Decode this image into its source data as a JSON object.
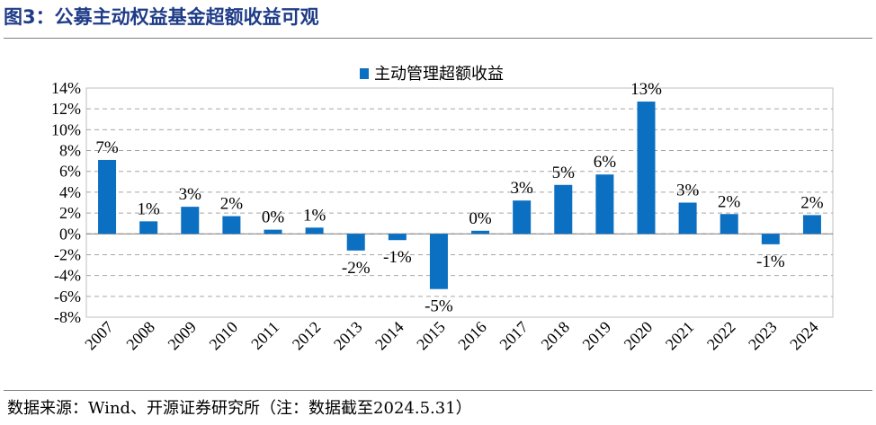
{
  "figure": {
    "title": "图3：公募主动权益基金超额收益可观",
    "source": "数据来源：Wind、开源证券研究所（注：数据截至2024.5.31）"
  },
  "chart_data": {
    "type": "bar",
    "categories": [
      "2007",
      "2008",
      "2009",
      "2010",
      "2011",
      "2012",
      "2013",
      "2014",
      "2015",
      "2016",
      "2017",
      "2018",
      "2019",
      "2020",
      "2021",
      "2022",
      "2023",
      "2024"
    ],
    "series": [
      {
        "name": "主动管理超额收益",
        "values": [
          7.1,
          1.2,
          2.6,
          1.7,
          0.4,
          0.6,
          -1.6,
          -0.6,
          -5.3,
          0.3,
          3.2,
          4.7,
          5.7,
          12.7,
          3.0,
          1.9,
          -1.0,
          1.8
        ],
        "data_labels": [
          "7%",
          "1%",
          "3%",
          "2%",
          "0%",
          "1%",
          "-2%",
          "-1%",
          "-5%",
          "0%",
          "3%",
          "5%",
          "6%",
          "13%",
          "3%",
          "2%",
          "-1%",
          "2%"
        ]
      }
    ],
    "ylim": [
      -8,
      14
    ],
    "yticks": [
      -8,
      -6,
      -4,
      -2,
      0,
      2,
      4,
      6,
      8,
      10,
      12,
      14
    ],
    "ytick_labels": [
      "-8%",
      "-6%",
      "-4%",
      "-2%",
      "0%",
      "2%",
      "4%",
      "6%",
      "8%",
      "10%",
      "12%",
      "14%"
    ],
    "grid": "horizontal dashed",
    "legend_position": "top-center",
    "bar_color": "#0b6fc2"
  }
}
